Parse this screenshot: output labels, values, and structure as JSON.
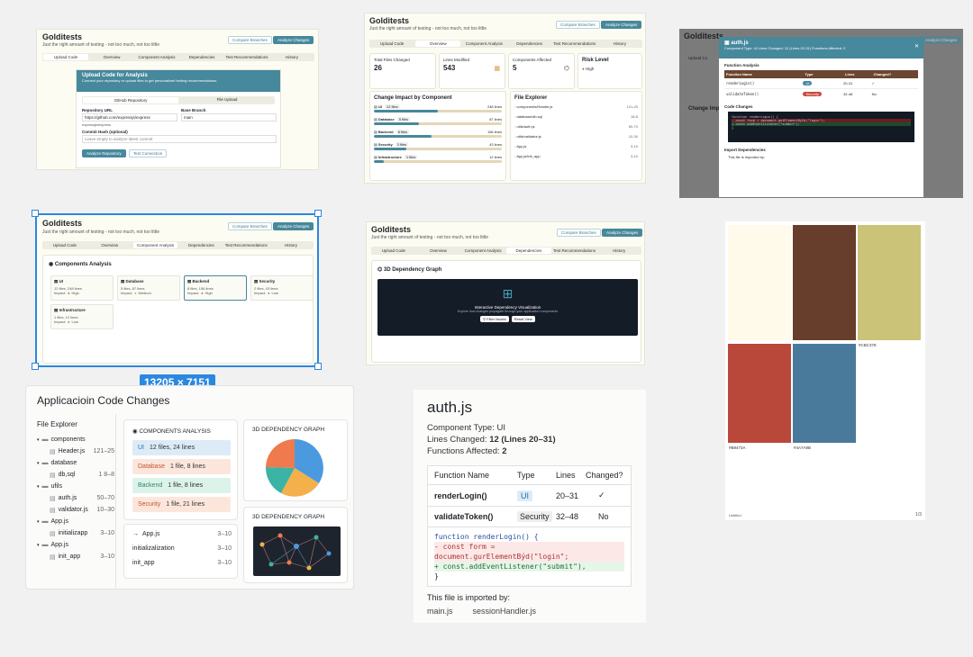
{
  "app": {
    "title": "Golditests",
    "subtitle": "Just the right amount of testing - not too much, not too little",
    "compare_label": "Compare Branches",
    "analyze_label": "Analyze Changes",
    "tabs": [
      "Upload Code",
      "Overview",
      "Component Analysis",
      "Dependencies",
      "Test Recommendations",
      "History"
    ]
  },
  "upload": {
    "heading": "Upload Code for Analysis",
    "desc": "Connect your repository or upload files to get personalized testing recommendations.",
    "github_tab": "GitHub Repository",
    "file_tab": "File Upload",
    "repo_label": "Repository URL",
    "repo_value": "https://github.com/expressjs/express",
    "branch_label": "Base Branch",
    "branch_value": "main",
    "repo_hint": "expressjs/express",
    "commit_label": "Commit Hash (optional)",
    "commit_placeholder": "Leave empty to analyze latest commit",
    "analyze_repo": "Analyze Repository",
    "test_conn": "Test Connection"
  },
  "overview": {
    "stats": [
      {
        "label": "Total Files Changed",
        "value": "26"
      },
      {
        "label": "Lines Modified",
        "value": "543"
      },
      {
        "label": "Components Affected",
        "value": "5"
      }
    ],
    "risk_label": "Risk Level",
    "risk_value": "High",
    "impact_title": "Change Impact by Component",
    "impact": [
      {
        "name": "UI",
        "files": "12 files",
        "lines": "248 lines",
        "pct": 0.5
      },
      {
        "name": "Database",
        "files": "5 files",
        "lines": "87 lines",
        "pct": 0.35
      },
      {
        "name": "Backend",
        "files": "8 files",
        "lines": "156 lines",
        "pct": 0.45
      },
      {
        "name": "Security",
        "files": "2 files",
        "lines": "43 lines",
        "pct": 0.25
      },
      {
        "name": "Infrastructure",
        "files": "1 files",
        "lines": "12 lines",
        "pct": 0.08
      }
    ],
    "explorer_title": "File Explorer",
    "files": [
      {
        "name": "components/Header.js",
        "range": "121-25"
      },
      {
        "name": "database/db.sql",
        "range": "18-8"
      },
      {
        "name": "utils/auth.js",
        "range": "50-70"
      },
      {
        "name": "utils/validator.js",
        "range": "10-30"
      },
      {
        "name": "App.js",
        "range": "3-10"
      },
      {
        "name": "App.js/init_app",
        "range": "3-10"
      }
    ]
  },
  "modal": {
    "title": "auth.js",
    "meta": "Component Type: UI   Lines Changed: 12 (Lines 20-31)   Functions Affected: 2",
    "fa_title": "Function Analysis",
    "cols": [
      "Function Name",
      "Type",
      "Lines",
      "Changed?"
    ],
    "rows": [
      {
        "name": "renderLogin()",
        "type": "UI",
        "lines": "20-31",
        "changed": "✓"
      },
      {
        "name": "validateToken()",
        "type": "Security",
        "lines": "32-48",
        "changed": "No"
      }
    ],
    "code_title": "Code Changes",
    "code": [
      "function renderLogin() {",
      "- const form = document.getElementById(\"login\");",
      "+ const.addEventListener(\"submit\");",
      "}"
    ],
    "dep_title": "Import Dependencies",
    "dep_text": "This file is imported by:",
    "bg_label_1": "Upload Co",
    "bg_label_2": "Change Imp"
  },
  "components": {
    "heading": "Components Analysis",
    "items": [
      {
        "name": "UI",
        "files": "12 files, 248 lines",
        "impact": "High",
        "color": "#c94a3c"
      },
      {
        "name": "Database",
        "files": "5 files, 87 lines",
        "impact": "Medium",
        "color": "#d89a3c"
      },
      {
        "name": "Backend",
        "files": "8 files, 156 lines",
        "impact": "High",
        "color": "#c94a3c"
      },
      {
        "name": "Security",
        "files": "2 files, 43 lines",
        "impact": "Low",
        "color": "#4a8a9e"
      },
      {
        "name": "Infrastructure",
        "files": "1 files, 12 lines",
        "impact": "Low",
        "color": "#4a8a9e"
      }
    ],
    "impact_prefix": "Impact:"
  },
  "selection_size": "13205 × 7151",
  "deps": {
    "heading": "3D Dependency Graph",
    "viz_title": "Interactive Dependency Visualization",
    "viz_desc": "Explore how changes propagate through your application components",
    "filter": "Filter Nodes",
    "reset": "Reset View"
  },
  "palette": {
    "colors": [
      {
        "hex": "#FFFAE9",
        "code": "#FFFAE9"
      },
      {
        "hex": "#663E2B",
        "code": "#663E2B"
      },
      {
        "hex": "#CBC378",
        "code": "#CBC378"
      },
      {
        "hex": "#B9473A",
        "code": "#B9473A"
      },
      {
        "hex": "#4A7A9B",
        "code": "#4A7A9B"
      }
    ],
    "footer_left": "Untitled",
    "footer_right": "1/3"
  },
  "sketch": {
    "title": "Applicacioin Code Changes",
    "explorer": "File Explorer",
    "tree": [
      {
        "label": "components",
        "type": "folder",
        "range": ""
      },
      {
        "label": "Header.js",
        "type": "file",
        "range": "121–25"
      },
      {
        "label": "database",
        "type": "folder",
        "range": ""
      },
      {
        "label": "db,sql",
        "type": "file",
        "range": "1 8–8"
      },
      {
        "label": "ufils",
        "type": "folder",
        "range": ""
      },
      {
        "label": "auth.js",
        "type": "file",
        "range": "50–70"
      },
      {
        "label": "validator.js",
        "type": "file",
        "range": "10–30"
      },
      {
        "label": "App.js",
        "type": "folder",
        "range": ""
      },
      {
        "label": "initializapp",
        "type": "file",
        "range": "3–10"
      },
      {
        "label": "App.js",
        "type": "folder",
        "range": ""
      },
      {
        "label": "init_app",
        "type": "file",
        "range": "3–10"
      }
    ],
    "comp_title": "COMPONENTS ANALYSIS",
    "comps": [
      {
        "name": "UI",
        "desc": "12 files, 24 lines"
      },
      {
        "name": "Database",
        "desc": "1 file, 8 lines"
      },
      {
        "name": "Backend",
        "desc": "1 file, 8 lines"
      },
      {
        "name": "Security",
        "desc": "1 file, 21 lines"
      }
    ],
    "graph_title_1": "3D DEPENDENCY GRAPH",
    "graph_title_2": "3D DEPENDENCY GRAPH",
    "list": [
      {
        "label": "App.js",
        "range": "3–10"
      },
      {
        "label": "initializalization",
        "range": "3–10"
      },
      {
        "label": "init_app",
        "range": "3–10"
      }
    ]
  },
  "card": {
    "title": "auth.js",
    "type_label": "Component Type:",
    "type_value": "UI",
    "lines_label": "Lines Changed:",
    "lines_value": "12 (Lines 20–31)",
    "funcs_label": "Functions Affected:",
    "funcs_value": "2",
    "cols": [
      "Function Name",
      "Type",
      "Lines",
      "Changed?"
    ],
    "rows": [
      {
        "name": "renderLogin()",
        "type": "UI",
        "lines": "20–31",
        "changed": "✓"
      },
      {
        "name": "validateToken()",
        "type": "Security",
        "lines": "32–48",
        "changed": "No"
      }
    ],
    "code": [
      "function renderLogin() {",
      "  - const form = document.gurElementBýd(\"login\";",
      "  + const.addEventListener(\"submit\"),",
      "}"
    ],
    "imported_by": "This file is imported by:",
    "imports": [
      "main.js",
      "sessionHandler.js"
    ]
  }
}
